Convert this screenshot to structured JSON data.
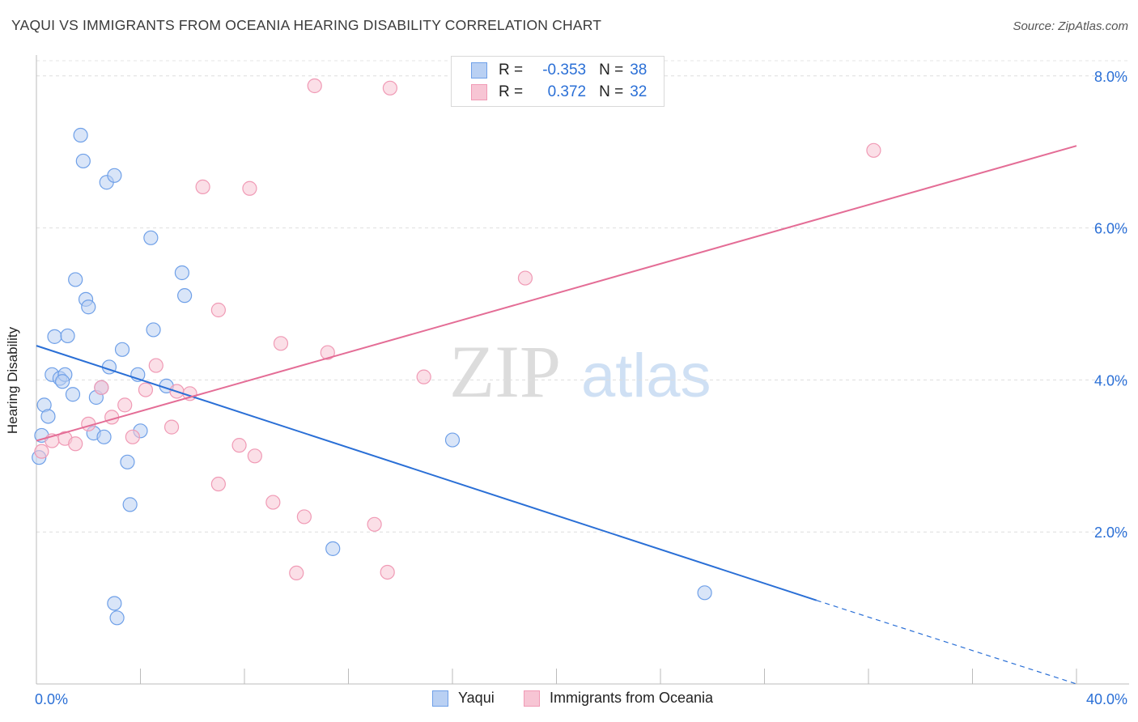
{
  "chart_data": {
    "type": "scatter",
    "title": "YAQUI VS IMMIGRANTS FROM OCEANIA HEARING DISABILITY CORRELATION CHART",
    "source": "Source: ZipAtlas.com",
    "ylabel": "Hearing Disability",
    "xlabel": "",
    "xlim": [
      0,
      40
    ],
    "ylim": [
      0,
      8.2
    ],
    "x_tick_labels": [
      "0.0%",
      "40.0%"
    ],
    "y_tick_labels": [
      "2.0%",
      "4.0%",
      "6.0%",
      "8.0%"
    ],
    "y_ticks": [
      2,
      4,
      6,
      8
    ],
    "x_minor_ticks": [
      0,
      4,
      8,
      12,
      16,
      20,
      24,
      28,
      32,
      36,
      40
    ],
    "watermark": {
      "zip": "ZIP",
      "atlas": "atlas"
    },
    "legend": {
      "r_label": "R =",
      "n_label": "N =",
      "entries": [
        {
          "name": "Yaqui",
          "r": "-0.353",
          "n": "38"
        },
        {
          "name": "Immigrants from Oceania",
          "r": "0.372",
          "n": "32"
        }
      ]
    },
    "series": [
      {
        "name": "Yaqui",
        "color": "#6fa0e8",
        "fill": "#b9d0f3",
        "line_color": "#2a6fd6",
        "trend": {
          "x0": 0,
          "y0": 4.45,
          "x1": 30,
          "y1": 1.1,
          "dash_to_x": 40,
          "dash_to_y": 0.0
        },
        "points": [
          [
            1.7,
            7.22
          ],
          [
            1.8,
            6.88
          ],
          [
            2.7,
            6.6
          ],
          [
            3.0,
            6.69
          ],
          [
            4.4,
            5.87
          ],
          [
            1.5,
            5.32
          ],
          [
            1.9,
            5.06
          ],
          [
            2.0,
            4.96
          ],
          [
            5.6,
            5.41
          ],
          [
            5.7,
            5.11
          ],
          [
            0.7,
            4.57
          ],
          [
            1.2,
            4.58
          ],
          [
            4.5,
            4.66
          ],
          [
            3.3,
            4.4
          ],
          [
            2.8,
            4.17
          ],
          [
            3.9,
            4.07
          ],
          [
            0.6,
            4.07
          ],
          [
            0.9,
            4.02
          ],
          [
            1.1,
            4.07
          ],
          [
            1.0,
            3.98
          ],
          [
            1.4,
            3.81
          ],
          [
            2.3,
            3.77
          ],
          [
            2.5,
            3.9
          ],
          [
            5.0,
            3.92
          ],
          [
            0.3,
            3.67
          ],
          [
            0.45,
            3.52
          ],
          [
            0.2,
            3.27
          ],
          [
            2.2,
            3.3
          ],
          [
            2.6,
            3.25
          ],
          [
            4.0,
            3.33
          ],
          [
            16.0,
            3.21
          ],
          [
            3.5,
            2.92
          ],
          [
            0.1,
            2.98
          ],
          [
            3.6,
            2.36
          ],
          [
            11.4,
            1.78
          ],
          [
            3.0,
            1.06
          ],
          [
            3.1,
            0.87
          ],
          [
            25.7,
            1.2
          ]
        ]
      },
      {
        "name": "Immigrants from Oceania",
        "color": "#f09ab5",
        "fill": "#f7c5d4",
        "line_color": "#e46d96",
        "trend": {
          "x0": 0,
          "y0": 3.2,
          "x1": 40,
          "y1": 7.08
        },
        "points": [
          [
            10.7,
            7.87
          ],
          [
            13.6,
            7.84
          ],
          [
            32.2,
            7.02
          ],
          [
            6.4,
            6.54
          ],
          [
            8.2,
            6.52
          ],
          [
            18.8,
            5.34
          ],
          [
            7.0,
            4.92
          ],
          [
            9.4,
            4.48
          ],
          [
            11.2,
            4.36
          ],
          [
            4.6,
            4.19
          ],
          [
            14.9,
            4.04
          ],
          [
            2.5,
            3.9
          ],
          [
            4.2,
            3.87
          ],
          [
            5.4,
            3.85
          ],
          [
            5.9,
            3.82
          ],
          [
            3.4,
            3.67
          ],
          [
            2.9,
            3.51
          ],
          [
            2.0,
            3.42
          ],
          [
            5.2,
            3.38
          ],
          [
            1.1,
            3.23
          ],
          [
            3.7,
            3.25
          ],
          [
            0.6,
            3.2
          ],
          [
            1.5,
            3.16
          ],
          [
            7.8,
            3.14
          ],
          [
            8.4,
            3.0
          ],
          [
            0.2,
            3.06
          ],
          [
            7.0,
            2.63
          ],
          [
            9.1,
            2.39
          ],
          [
            10.3,
            2.2
          ],
          [
            13.0,
            2.1
          ],
          [
            10.0,
            1.46
          ],
          [
            13.5,
            1.47
          ]
        ]
      }
    ]
  }
}
